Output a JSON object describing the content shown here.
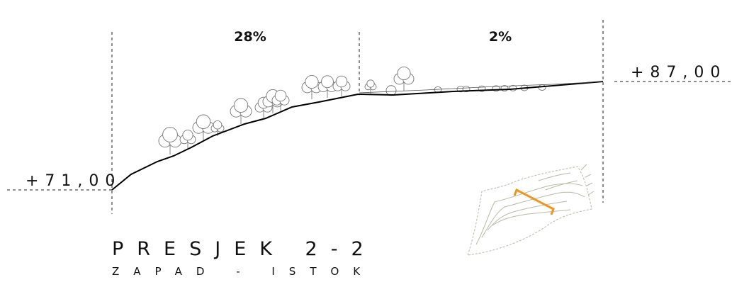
{
  "slopes": [
    "28%",
    "2%"
  ],
  "elevations": {
    "left": "+71,00",
    "right": "+87,00"
  },
  "title": "PRESJEK 2-2",
  "subtitle": "ZAPAD - ISTOK"
}
